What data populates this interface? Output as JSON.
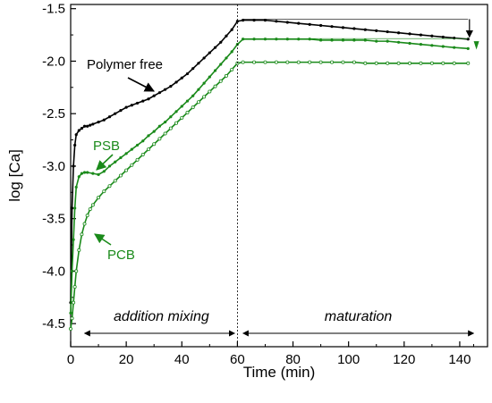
{
  "chart_data": {
    "type": "scatter",
    "xlabel": "Time (min)",
    "ylabel": "log [Ca]",
    "xlim": [
      0,
      150
    ],
    "ylim": [
      -4.72,
      -1.46
    ],
    "x_ticks": [
      0,
      20,
      40,
      60,
      80,
      100,
      120,
      140
    ],
    "y_ticks": [
      -4.5,
      -4.0,
      -3.5,
      -3.0,
      -2.5,
      -2.0,
      -1.5
    ],
    "x_tick_labels": [
      "0",
      "20",
      "40",
      "60",
      "80",
      "100",
      "120",
      "140"
    ],
    "y_tick_labels": [
      "-4.5",
      "-4.0",
      "-3.5",
      "-3.0",
      "-2.5",
      "-2.0",
      "-1.5"
    ],
    "grid": false,
    "legend": "none",
    "series": [
      {
        "name": "Polymer free",
        "color": "#000000",
        "marker": "filled",
        "x": [
          0,
          0.5,
          1,
          1.5,
          2,
          3,
          4,
          5,
          6,
          7,
          8,
          10,
          12,
          14,
          16,
          18,
          20,
          22,
          24,
          26,
          28,
          30,
          32,
          34,
          36,
          38,
          40,
          42,
          44,
          46,
          48,
          50,
          52,
          54,
          56,
          58,
          60,
          62,
          66,
          70,
          74,
          78,
          82,
          86,
          90,
          94,
          98,
          102,
          106,
          110,
          114,
          118,
          122,
          126,
          130,
          134,
          138,
          143
        ],
        "y": [
          -4.3,
          -3.4,
          -3.0,
          -2.8,
          -2.7,
          -2.66,
          -2.64,
          -2.62,
          -2.62,
          -2.61,
          -2.6,
          -2.58,
          -2.56,
          -2.53,
          -2.5,
          -2.47,
          -2.44,
          -2.42,
          -2.4,
          -2.38,
          -2.36,
          -2.33,
          -2.3,
          -2.27,
          -2.24,
          -2.2,
          -2.16,
          -2.12,
          -2.07,
          -2.02,
          -1.97,
          -1.92,
          -1.87,
          -1.82,
          -1.76,
          -1.7,
          -1.62,
          -1.61,
          -1.61,
          -1.61,
          -1.62,
          -1.63,
          -1.64,
          -1.65,
          -1.66,
          -1.67,
          -1.68,
          -1.69,
          -1.7,
          -1.71,
          -1.72,
          -1.73,
          -1.74,
          -1.75,
          -1.76,
          -1.77,
          -1.78,
          -1.79
        ]
      },
      {
        "name": "PSB",
        "color": "#1a8a1a",
        "marker": "filled",
        "x": [
          0,
          0.5,
          1,
          1.5,
          2,
          3,
          4,
          5,
          6,
          8,
          10,
          12,
          14,
          16,
          18,
          20,
          22,
          24,
          26,
          28,
          30,
          32,
          34,
          36,
          38,
          40,
          42,
          44,
          46,
          48,
          50,
          52,
          54,
          56,
          58,
          60,
          62,
          66,
          70,
          74,
          78,
          82,
          86,
          90,
          94,
          98,
          102,
          106,
          110,
          114,
          118,
          122,
          126,
          130,
          134,
          138,
          143
        ],
        "y": [
          -4.4,
          -4.0,
          -3.7,
          -3.4,
          -3.2,
          -3.1,
          -3.07,
          -3.06,
          -3.06,
          -3.07,
          -3.08,
          -3.05,
          -3.0,
          -2.96,
          -2.92,
          -2.88,
          -2.84,
          -2.8,
          -2.76,
          -2.71,
          -2.67,
          -2.62,
          -2.58,
          -2.53,
          -2.48,
          -2.43,
          -2.38,
          -2.33,
          -2.27,
          -2.21,
          -2.15,
          -2.09,
          -2.03,
          -1.97,
          -1.91,
          -1.84,
          -1.79,
          -1.79,
          -1.79,
          -1.79,
          -1.79,
          -1.79,
          -1.79,
          -1.8,
          -1.8,
          -1.8,
          -1.8,
          -1.8,
          -1.81,
          -1.81,
          -1.82,
          -1.83,
          -1.84,
          -1.85,
          -1.86,
          -1.87,
          -1.88
        ]
      },
      {
        "name": "PCB",
        "color": "#1a8a1a",
        "marker": "open",
        "x": [
          0,
          0.5,
          1,
          1.5,
          2,
          3,
          4,
          5,
          6,
          7,
          8,
          10,
          12,
          14,
          16,
          18,
          20,
          22,
          24,
          26,
          28,
          30,
          32,
          34,
          36,
          38,
          40,
          42,
          44,
          46,
          48,
          50,
          52,
          54,
          56,
          58,
          60,
          62,
          66,
          70,
          74,
          78,
          82,
          86,
          90,
          94,
          98,
          102,
          106,
          110,
          114,
          118,
          122,
          126,
          130,
          134,
          138,
          143
        ],
        "y": [
          -4.55,
          -4.45,
          -4.3,
          -4.15,
          -4.0,
          -3.8,
          -3.65,
          -3.55,
          -3.47,
          -3.41,
          -3.37,
          -3.3,
          -3.24,
          -3.19,
          -3.14,
          -3.09,
          -3.04,
          -2.99,
          -2.94,
          -2.89,
          -2.84,
          -2.79,
          -2.74,
          -2.69,
          -2.64,
          -2.59,
          -2.54,
          -2.49,
          -2.44,
          -2.39,
          -2.34,
          -2.29,
          -2.24,
          -2.19,
          -2.14,
          -2.08,
          -2.02,
          -2.01,
          -2.01,
          -2.01,
          -2.01,
          -2.01,
          -2.01,
          -2.01,
          -2.01,
          -2.01,
          -2.01,
          -2.01,
          -2.02,
          -2.02,
          -2.02,
          -2.02,
          -2.02,
          -2.02,
          -2.02,
          -2.02,
          -2.02,
          -2.02
        ]
      }
    ],
    "annotations": {
      "polymer_free": "Polymer free",
      "psb": "PSB",
      "pcb": "PCB",
      "addition_mixing": "addition mixing",
      "maturation": "maturation"
    }
  }
}
